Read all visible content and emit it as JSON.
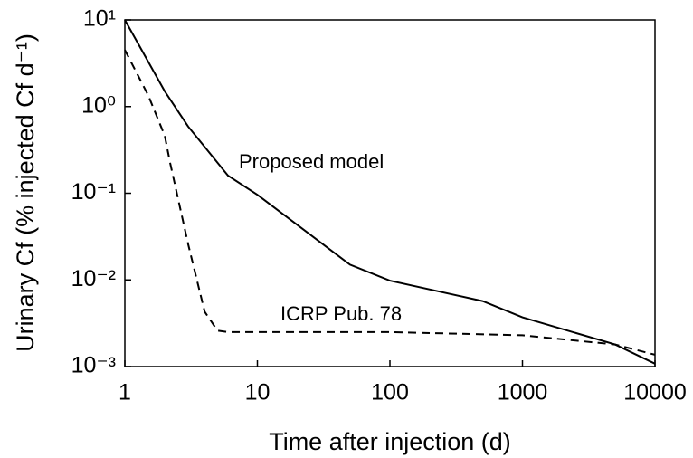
{
  "chart_data": {
    "type": "line",
    "xlabel": "Time after injection (d)",
    "ylabel": "Urinary Cf (% injected Cf d⁻¹)",
    "xscale": "log",
    "yscale": "log",
    "xlim": [
      1,
      10000
    ],
    "ylim": [
      0.001,
      10
    ],
    "xticks": [
      1,
      10,
      100,
      1000,
      10000
    ],
    "yticks": [
      {
        "value": 10,
        "label": "10¹"
      },
      {
        "value": 1,
        "label": "10⁰"
      },
      {
        "value": 0.1,
        "label": "10⁻¹"
      },
      {
        "value": 0.01,
        "label": "10⁻²"
      },
      {
        "value": 0.001,
        "label": "10⁻³"
      }
    ],
    "series": [
      {
        "name": "Proposed model",
        "color": "#000000",
        "dash": false,
        "x": [
          1,
          2,
          3,
          6,
          10,
          50,
          100,
          500,
          1000,
          5000,
          10000
        ],
        "values": [
          10,
          1.5,
          0.59,
          0.16,
          0.096,
          0.015,
          0.0098,
          0.0057,
          0.0037,
          0.0018,
          0.00108
        ]
      },
      {
        "name": "ICRP Pub. 78",
        "color": "#000000",
        "dash": true,
        "x": [
          1,
          1.5,
          2,
          2.2,
          3,
          4,
          5,
          6,
          100,
          1000,
          5000,
          10000
        ],
        "values": [
          4.5,
          1.35,
          0.46,
          0.22,
          0.026,
          0.0043,
          0.0026,
          0.0025,
          0.0025,
          0.0023,
          0.0018,
          0.00137
        ]
      }
    ]
  }
}
